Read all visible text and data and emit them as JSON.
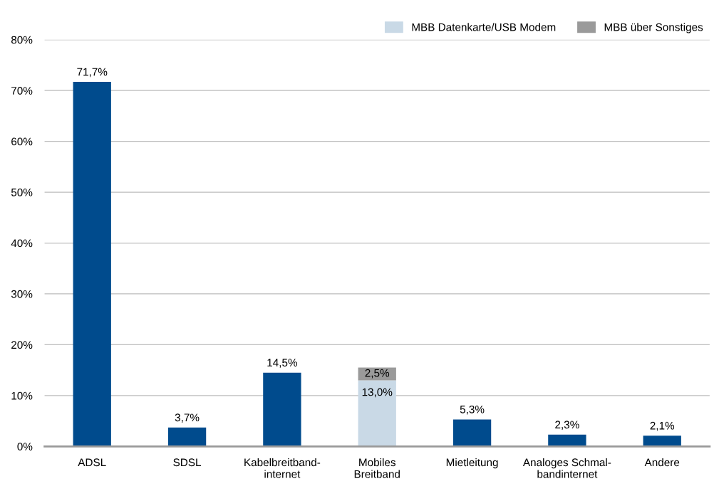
{
  "chart_data": {
    "type": "bar",
    "stacked": true,
    "categories": [
      "ADSL",
      "SDSL",
      "Kabelbreitband-\ninternet",
      "Mobiles\nBreitband",
      "Mietleitung",
      "Analoges Schmal-\nbandinternet",
      "Andere"
    ],
    "series": [
      {
        "color": "#004b8d",
        "values": [
          71.7,
          3.7,
          14.5,
          null,
          5.3,
          2.3,
          2.1
        ],
        "value_labels": [
          "71,7%",
          "3,7%",
          "14,5%",
          null,
          "5,3%",
          "2,3%",
          "2,1%"
        ]
      },
      {
        "name": "MBB Datenkarte/USB Modem",
        "color": "#c9d9e6",
        "values": [
          null,
          null,
          null,
          13.0,
          null,
          null,
          null
        ],
        "value_labels": [
          null,
          null,
          null,
          "13,0%",
          null,
          null,
          null
        ]
      },
      {
        "name": "MBB über Sonstiges",
        "color": "#9a9a9a",
        "values": [
          null,
          null,
          null,
          2.5,
          null,
          null,
          null
        ],
        "value_labels": [
          null,
          null,
          null,
          "2,5%",
          null,
          null,
          null
        ]
      }
    ],
    "ylim": [
      0,
      80
    ],
    "yticks": [
      {
        "value": 0,
        "label": "0%"
      },
      {
        "value": 10,
        "label": "10%"
      },
      {
        "value": 20,
        "label": "20%"
      },
      {
        "value": 30,
        "label": "30%"
      },
      {
        "value": 40,
        "label": "40%"
      },
      {
        "value": 50,
        "label": "50%"
      },
      {
        "value": 60,
        "label": "60%"
      },
      {
        "value": 70,
        "label": "70%"
      },
      {
        "value": 80,
        "label": "80%"
      }
    ],
    "grid": "y",
    "legend": "top right"
  }
}
